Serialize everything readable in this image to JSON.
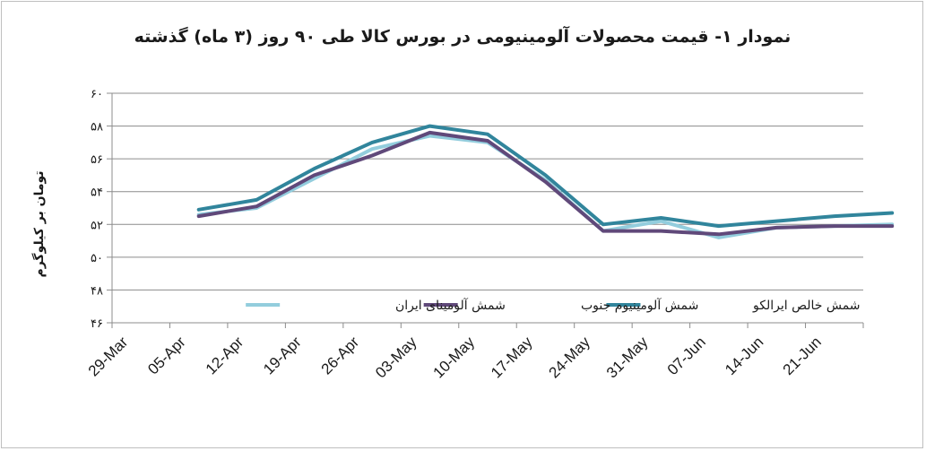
{
  "chart_data": {
    "type": "line",
    "title": "نمودار ۱- قیمت محصولات آلومینیومی در بورس کالا طی ۹۰ روز (۳ ماه) گذشته",
    "ylabel": "تومان بر کیلوگرم",
    "xlabel": "",
    "ylim": [
      46,
      60
    ],
    "yticks": [
      "۴۶",
      "۴۸",
      "۵۰",
      "۵۲",
      "۵۴",
      "۵۶",
      "۵۸",
      "۶۰"
    ],
    "categories": [
      "29-Mar",
      "05-Apr",
      "12-Apr",
      "19-Apr",
      "26-Apr",
      "03-May",
      "10-May",
      "17-May",
      "24-May",
      "31-May",
      "07-Jun",
      "14-Jun",
      "21-Jun"
    ],
    "grid": true,
    "legend_position": "inside-bottom",
    "series": [
      {
        "name": "شمش خالص ایرالکو",
        "color": "#31859c",
        "x": [
          1,
          2,
          3,
          4,
          5,
          6,
          7,
          8,
          9,
          10,
          11,
          12,
          13
        ],
        "values": [
          52.9,
          53.5,
          55.4,
          57.0,
          58.0,
          57.5,
          55.0,
          52.0,
          52.4,
          51.9,
          52.2,
          52.5,
          52.7
        ]
      },
      {
        "name": "شمش آلومینیوم جنوب",
        "color": "#60497a",
        "x": [
          1,
          2,
          3,
          4,
          5,
          6,
          7,
          8,
          9,
          10,
          11,
          12,
          13
        ],
        "values": [
          52.5,
          53.1,
          55.0,
          56.2,
          57.6,
          57.1,
          54.6,
          51.6,
          51.6,
          51.4,
          51.8,
          51.9,
          51.9
        ]
      },
      {
        "name": "شمش آلومینای ایران",
        "color": "#93cddd",
        "x": [
          1,
          2,
          3,
          4,
          5,
          6,
          7,
          8,
          9,
          10,
          11,
          12,
          13
        ],
        "values": [
          52.6,
          53.0,
          54.8,
          56.6,
          57.4,
          57.0,
          54.7,
          51.6,
          52.2,
          51.2,
          51.8,
          51.9,
          52.0
        ]
      }
    ]
  }
}
